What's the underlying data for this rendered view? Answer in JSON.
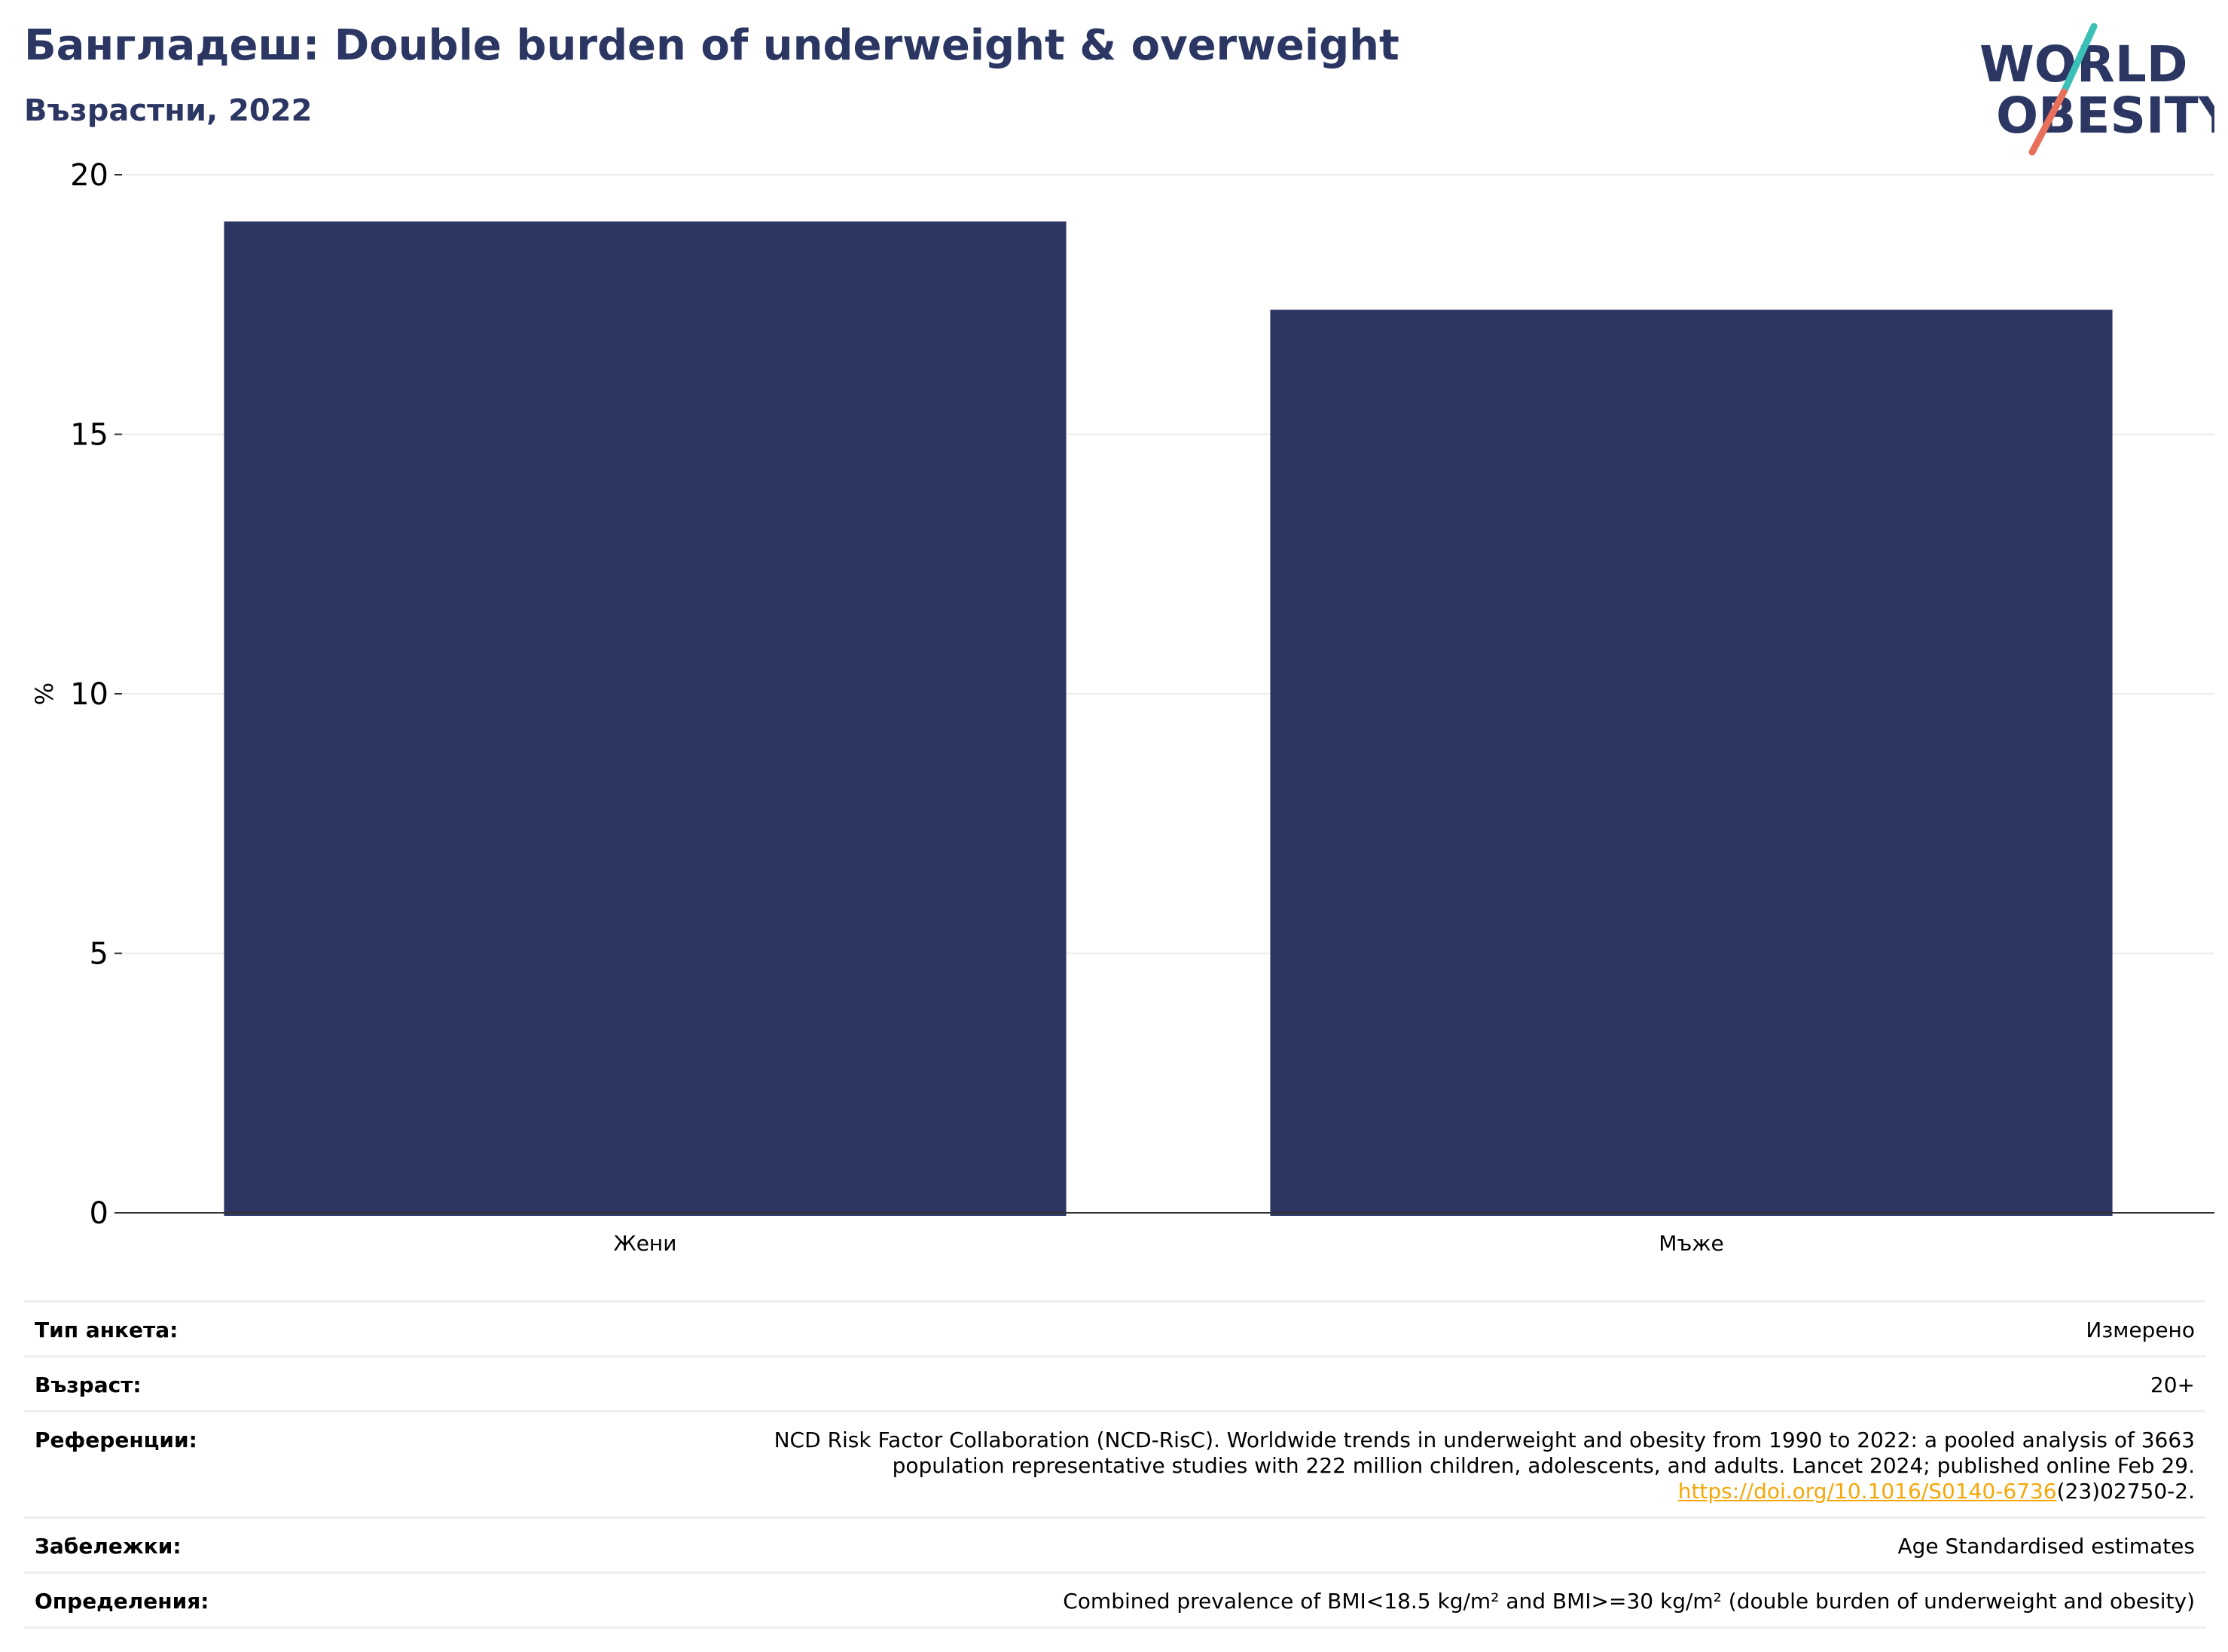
{
  "header": {
    "title": "Бангладеш: Double burden of underweight & overweight",
    "subtitle": "Възрастни, 2022"
  },
  "logo": {
    "line1": "WORLD",
    "line2": "OBESITY",
    "colors": {
      "text": "#2b3663",
      "slash_top": "#3bbfb6",
      "slash_bottom": "#e8705a"
    }
  },
  "chart_data": {
    "type": "bar",
    "categories": [
      "Жени",
      "Мъже"
    ],
    "values": [
      19.1,
      17.4
    ],
    "title": "",
    "xlabel": "",
    "ylabel": "%",
    "ylim": [
      0,
      20
    ],
    "yticks": [
      0,
      5,
      10,
      15,
      20
    ],
    "grid": true,
    "bar_color": "#2b3663"
  },
  "meta": [
    {
      "key": "Тип анкета:",
      "value": "Измерено"
    },
    {
      "key": "Възраст:",
      "value": "20+"
    },
    {
      "key": "Референции:",
      "line1": "NCD Risk Factor Collaboration (NCD-RisC). Worldwide trends in underweight and obesity from 1990 to 2022: a pooled analysis of 3663",
      "line2": "population representative studies with 222 million children, adolescents, and adults. Lancet 2024; published online Feb 29.",
      "link": "https://doi.org/10.1016/S0140-6736",
      "link_suffix": "(23)02750-2."
    },
    {
      "key": "Забележки:",
      "value": "Age Standardised estimates"
    },
    {
      "key": "Определения:",
      "value": "Combined prevalence of BMI<18.5 kg/m² and BMI>=30 kg/m² (double burden of underweight and obesity)"
    }
  ]
}
